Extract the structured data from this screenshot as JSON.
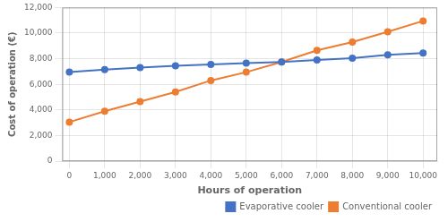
{
  "chart_data": {
    "type": "line",
    "xlabel": "Hours of operation",
    "ylabel": "Cost of operation (€)",
    "x": [
      0,
      1000,
      2000,
      3000,
      4000,
      5000,
      6000,
      7000,
      8000,
      9000,
      10000
    ],
    "series": [
      {
        "name": "Evaporative cooler",
        "color": "#4472C4",
        "marker": "o",
        "values": [
          6950,
          7150,
          7300,
          7450,
          7550,
          7650,
          7750,
          7900,
          8050,
          8300,
          8450
        ]
      },
      {
        "name": "Conventional cooler",
        "color": "#ED7D31",
        "marker": "o",
        "values": [
          3050,
          3900,
          4650,
          5400,
          6300,
          6950,
          7750,
          8650,
          9300,
          10100,
          10950
        ]
      }
    ],
    "xlim": [
      -200,
      10400
    ],
    "ylim": [
      0,
      12000
    ],
    "xticks": [
      0,
      {
        "value": 1000,
        "label": "1,000"
      },
      {
        "value": 2000,
        "label": "2,000"
      },
      {
        "value": 3000,
        "label": "3,000"
      },
      {
        "value": 4000,
        "label": "4,000"
      },
      {
        "value": 5000,
        "label": "5,000"
      },
      {
        "value": 6000,
        "label": "6,000"
      },
      {
        "value": 7000,
        "label": "7,000"
      },
      {
        "value": 8000,
        "label": "8,000"
      },
      {
        "value": 9000,
        "label": "9,000"
      },
      {
        "value": 10000,
        "label": "10,000"
      }
    ],
    "yticks": [
      0,
      {
        "value": 2000,
        "label": "2,000"
      },
      {
        "value": 4000,
        "label": "4,000"
      },
      {
        "value": 6000,
        "label": "6,000"
      },
      {
        "value": 8000,
        "label": "8,000"
      },
      {
        "value": 10000,
        "label": "10,000"
      },
      {
        "value": 12000,
        "label": "12,000"
      }
    ],
    "grid": true,
    "legend": "lower right"
  }
}
